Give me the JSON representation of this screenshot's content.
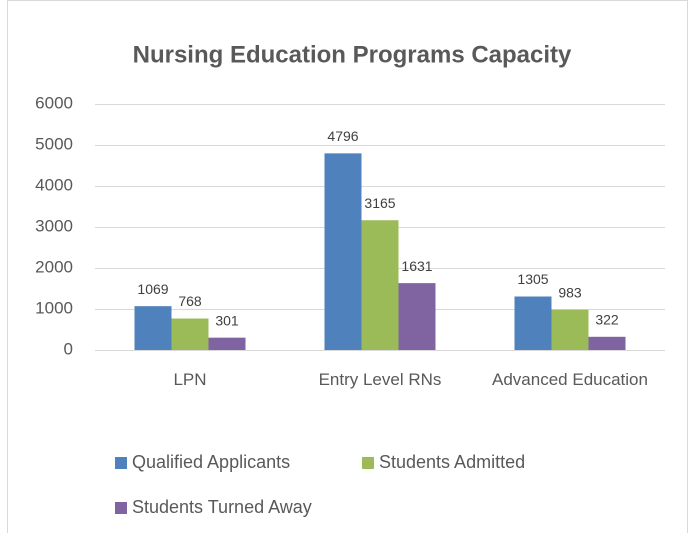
{
  "chart_data": {
    "type": "bar",
    "title": "Nursing Education Programs Capacity",
    "categories": [
      "LPN",
      "Entry Level RNs",
      "Advanced Education"
    ],
    "series": [
      {
        "name": "Qualified Applicants",
        "color": "#4f81bd",
        "values": [
          1069,
          4796,
          1305
        ]
      },
      {
        "name": "Students Admitted",
        "color": "#9bbb59",
        "values": [
          768,
          3165,
          983
        ]
      },
      {
        "name": "Students Turned Away",
        "color": "#8064a2",
        "values": [
          301,
          1631,
          322
        ]
      }
    ],
    "ylim": [
      0,
      6000
    ],
    "yticks": [
      0,
      1000,
      2000,
      3000,
      4000,
      5000,
      6000
    ],
    "grid": true,
    "legend": "bottom"
  }
}
